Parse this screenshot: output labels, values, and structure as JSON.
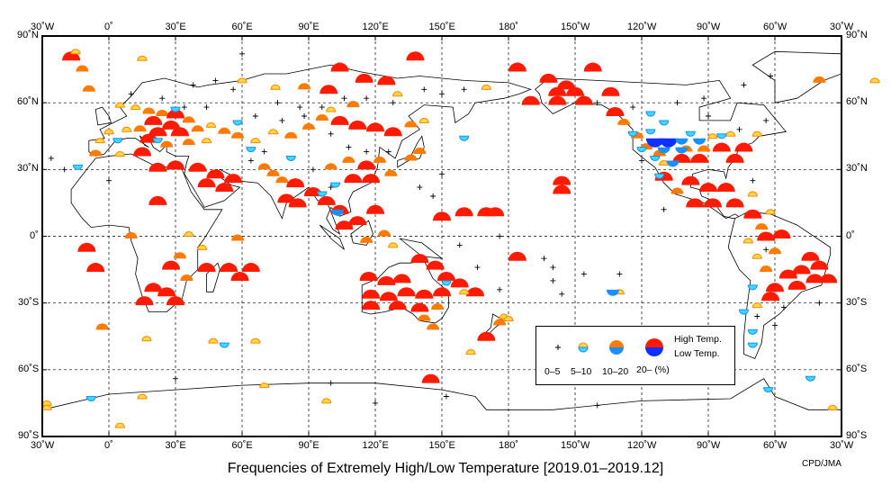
{
  "title": "Frequencies of Extremely High/Low Temperature [2019.01–2019.12]",
  "credit": "CPD/JMA",
  "axes": {
    "lon_labels": [
      "30˚W",
      "0˚",
      "30˚E",
      "60˚E",
      "90˚E",
      "120˚E",
      "150˚E",
      "180˚",
      "150˚W",
      "120˚W",
      "90˚W",
      "60˚W",
      "30˚W"
    ],
    "lat_labels": [
      "90˚N",
      "60˚N",
      "30˚N",
      "0˚",
      "30˚S",
      "60˚S",
      "90˚S"
    ]
  },
  "legend": {
    "high": "High Temp.",
    "low": "Low Temp.",
    "classes": [
      "0–5",
      "5–10",
      "10–20",
      "20– (%)"
    ]
  },
  "colors": {
    "high": [
      "#ffd84a",
      "#ff7a00",
      "#ff1a00"
    ],
    "high_edge": "#ff8a00",
    "low": [
      "#40d8ff",
      "#1a90ff",
      "#1030ff"
    ]
  },
  "markers": [
    [
      -17,
      79,
      3,
      "H"
    ],
    [
      -12,
      74,
      2,
      "H"
    ],
    [
      -9,
      65,
      2,
      "H"
    ],
    [
      -15,
      82,
      1,
      "H"
    ],
    [
      15,
      79,
      1,
      "H"
    ],
    [
      104,
      74,
      3,
      "H"
    ],
    [
      138,
      79,
      3,
      "H"
    ],
    [
      184,
      74,
      3,
      "H"
    ],
    [
      218,
      74,
      3,
      "H"
    ],
    [
      198,
      69,
      3,
      "H"
    ],
    [
      206,
      66,
      3,
      "H"
    ],
    [
      190,
      59,
      3,
      "H"
    ],
    [
      202,
      59,
      3,
      "H"
    ],
    [
      214,
      59,
      3,
      "H"
    ],
    [
      202,
      63,
      3,
      "H"
    ],
    [
      210,
      63,
      3,
      "H"
    ],
    [
      226,
      63,
      3,
      "H"
    ],
    [
      99,
      64,
      3,
      "H"
    ],
    [
      115,
      69,
      3,
      "H"
    ],
    [
      125,
      68,
      3,
      "H"
    ],
    [
      88,
      66,
      2,
      "H"
    ],
    [
      75,
      66,
      1,
      "H"
    ],
    [
      60,
      69,
      1,
      "H"
    ],
    [
      130,
      63,
      1,
      "H"
    ],
    [
      170,
      66,
      1,
      "H"
    ],
    [
      320,
      69,
      2,
      "H"
    ],
    [
      345,
      69,
      1,
      "H"
    ],
    [
      5,
      58,
      1,
      "H"
    ],
    [
      12,
      57,
      1,
      "H"
    ],
    [
      18,
      55,
      2,
      "H"
    ],
    [
      24,
      54,
      2,
      "H"
    ],
    [
      30,
      53,
      3,
      "H"
    ],
    [
      36,
      51,
      2,
      "H"
    ],
    [
      20,
      50,
      3,
      "H"
    ],
    [
      28,
      48,
      3,
      "H"
    ],
    [
      14,
      47,
      2,
      "H"
    ],
    [
      8,
      47,
      1,
      "H"
    ],
    [
      0,
      46,
      1,
      "H"
    ],
    [
      -4,
      42,
      1,
      "H"
    ],
    [
      22,
      45,
      3,
      "H"
    ],
    [
      32,
      45,
      3,
      "H"
    ],
    [
      40,
      47,
      2,
      "H"
    ],
    [
      46,
      49,
      1,
      "H"
    ],
    [
      52,
      46,
      2,
      "H"
    ],
    [
      18,
      42,
      3,
      "H"
    ],
    [
      26,
      40,
      2,
      "H"
    ],
    [
      36,
      41,
      2,
      "H"
    ],
    [
      44,
      42,
      1,
      "H"
    ],
    [
      58,
      44,
      2,
      "H"
    ],
    [
      66,
      42,
      1,
      "H"
    ],
    [
      74,
      46,
      1,
      "H"
    ],
    [
      82,
      44,
      2,
      "H"
    ],
    [
      90,
      48,
      2,
      "H"
    ],
    [
      96,
      52,
      2,
      "H"
    ],
    [
      104,
      50,
      3,
      "H"
    ],
    [
      112,
      48,
      3,
      "H"
    ],
    [
      120,
      47,
      3,
      "H"
    ],
    [
      128,
      45,
      3,
      "H"
    ],
    [
      136,
      49,
      2,
      "H"
    ],
    [
      142,
      51,
      1,
      "H"
    ],
    [
      100,
      56,
      1,
      "H"
    ],
    [
      110,
      58,
      2,
      "H"
    ],
    [
      -6,
      36,
      2,
      "H"
    ],
    [
      5,
      36,
      1,
      "H"
    ],
    [
      15,
      36,
      3,
      "H"
    ],
    [
      22,
      29,
      3,
      "H"
    ],
    [
      30,
      30,
      3,
      "H"
    ],
    [
      40,
      29,
      3,
      "H"
    ],
    [
      48,
      26,
      3,
      "H"
    ],
    [
      56,
      24,
      3,
      "H"
    ],
    [
      44,
      22,
      3,
      "H"
    ],
    [
      52,
      20,
      3,
      "H"
    ],
    [
      70,
      30,
      2,
      "H"
    ],
    [
      74,
      27,
      2,
      "H"
    ],
    [
      78,
      24,
      2,
      "H"
    ],
    [
      84,
      22,
      3,
      "H"
    ],
    [
      80,
      15,
      3,
      "H"
    ],
    [
      85,
      13,
      3,
      "H"
    ],
    [
      92,
      18,
      3,
      "H"
    ],
    [
      98,
      14,
      3,
      "H"
    ],
    [
      100,
      30,
      2,
      "H"
    ],
    [
      108,
      33,
      2,
      "H"
    ],
    [
      116,
      30,
      3,
      "H"
    ],
    [
      122,
      33,
      2,
      "H"
    ],
    [
      110,
      24,
      3,
      "H"
    ],
    [
      118,
      24,
      3,
      "H"
    ],
    [
      127,
      27,
      2,
      "H"
    ],
    [
      136,
      34,
      2,
      "H"
    ],
    [
      140,
      37,
      2,
      "H"
    ],
    [
      104,
      10,
      3,
      "H"
    ],
    [
      106,
      3,
      3,
      "H"
    ],
    [
      112,
      5,
      3,
      "H"
    ],
    [
      120,
      10,
      3,
      "H"
    ],
    [
      124,
      0,
      2,
      "H"
    ],
    [
      116,
      -3,
      2,
      "H"
    ],
    [
      128,
      -5,
      1,
      "H"
    ],
    [
      150,
      7,
      3,
      "H"
    ],
    [
      160,
      9,
      3,
      "H"
    ],
    [
      170,
      9,
      3,
      "H"
    ],
    [
      174,
      9,
      3,
      "H"
    ],
    [
      -10,
      -7,
      3,
      "H"
    ],
    [
      -6,
      -16,
      3,
      "H"
    ],
    [
      22,
      14,
      3,
      "H"
    ],
    [
      10,
      -1,
      2,
      "H"
    ],
    [
      36,
      0,
      1,
      "H"
    ],
    [
      42,
      -6,
      1,
      "H"
    ],
    [
      28,
      -15,
      3,
      "H"
    ],
    [
      44,
      -16,
      3,
      "H"
    ],
    [
      54,
      -16,
      3,
      "H"
    ],
    [
      64,
      -16,
      3,
      "H"
    ],
    [
      59,
      -20,
      3,
      "H"
    ],
    [
      20,
      -25,
      3,
      "H"
    ],
    [
      26,
      -27,
      3,
      "H"
    ],
    [
      16,
      -31,
      3,
      "H"
    ],
    [
      30,
      -31,
      3,
      "H"
    ],
    [
      35,
      -20,
      2,
      "H"
    ],
    [
      32,
      -10,
      2,
      "H"
    ],
    [
      58,
      -2,
      2,
      "H"
    ],
    [
      -3,
      -42,
      2,
      "H"
    ],
    [
      17,
      -47,
      1,
      "H"
    ],
    [
      47,
      -48,
      1,
      "H"
    ],
    [
      66,
      -48,
      1,
      "H"
    ],
    [
      117,
      -20,
      3,
      "H"
    ],
    [
      125,
      -22,
      3,
      "H"
    ],
    [
      132,
      -21,
      3,
      "H"
    ],
    [
      140,
      -12,
      3,
      "H"
    ],
    [
      147,
      -15,
      3,
      "H"
    ],
    [
      152,
      -20,
      3,
      "H"
    ],
    [
      158,
      -23,
      3,
      "H"
    ],
    [
      118,
      -28,
      3,
      "H"
    ],
    [
      126,
      -29,
      3,
      "H"
    ],
    [
      134,
      -27,
      3,
      "H"
    ],
    [
      142,
      -28,
      3,
      "H"
    ],
    [
      150,
      -27,
      3,
      "H"
    ],
    [
      118,
      -33,
      3,
      "H"
    ],
    [
      130,
      -33,
      3,
      "H"
    ],
    [
      140,
      -34,
      3,
      "H"
    ],
    [
      148,
      -33,
      2,
      "H"
    ],
    [
      142,
      -38,
      2,
      "H"
    ],
    [
      146,
      -42,
      2,
      "H"
    ],
    [
      170,
      -47,
      3,
      "H"
    ],
    [
      176,
      -40,
      2,
      "H"
    ],
    [
      178,
      -37,
      1,
      "H"
    ],
    [
      165,
      -27,
      3,
      "H"
    ],
    [
      184,
      -11,
      3,
      "H"
    ],
    [
      160,
      -26,
      1,
      "H"
    ],
    [
      163,
      -53,
      1,
      "H"
    ],
    [
      204,
      23,
      3,
      "H"
    ],
    [
      204,
      19,
      3,
      "H"
    ],
    [
      145,
      -66,
      3,
      "H"
    ],
    [
      98,
      -75,
      1,
      "H"
    ],
    [
      70,
      -68,
      1,
      "H"
    ],
    [
      15,
      -73,
      1,
      "H"
    ],
    [
      -28,
      -78,
      1,
      "H"
    ],
    [
      -28,
      -76,
      1,
      "H"
    ],
    [
      5,
      -86,
      1,
      "H"
    ],
    [
      326,
      -78,
      1,
      "H"
    ],
    [
      228,
      54,
      3,
      "H"
    ],
    [
      232,
      50,
      2,
      "H"
    ],
    [
      238,
      44,
      2,
      "H"
    ],
    [
      242,
      39,
      2,
      "H"
    ],
    [
      248,
      36,
      2,
      "H"
    ],
    [
      250,
      32,
      1,
      "H"
    ],
    [
      260,
      38,
      2,
      "H"
    ],
    [
      268,
      38,
      2,
      "H"
    ],
    [
      276,
      38,
      3,
      "H"
    ],
    [
      286,
      38,
      3,
      "H"
    ],
    [
      282,
      33,
      3,
      "H"
    ],
    [
      272,
      44,
      1,
      "H"
    ],
    [
      280,
      45,
      1,
      "H"
    ],
    [
      292,
      45,
      1,
      "H"
    ],
    [
      266,
      33,
      3,
      "H"
    ],
    [
      258,
      33,
      3,
      "H"
    ],
    [
      250,
      25,
      3,
      "H"
    ],
    [
      262,
      23,
      3,
      "H"
    ],
    [
      270,
      20,
      3,
      "H"
    ],
    [
      278,
      20,
      3,
      "H"
    ],
    [
      256,
      19,
      2,
      "H"
    ],
    [
      264,
      13,
      3,
      "H"
    ],
    [
      272,
      13,
      3,
      "H"
    ],
    [
      282,
      13,
      3,
      "H"
    ],
    [
      290,
      8,
      3,
      "H"
    ],
    [
      294,
      3,
      2,
      "H"
    ],
    [
      296,
      -2,
      3,
      "H"
    ],
    [
      303,
      -1,
      3,
      "H"
    ],
    [
      288,
      -3,
      1,
      "H"
    ],
    [
      292,
      -10,
      1,
      "H"
    ],
    [
      316,
      -11,
      3,
      "H"
    ],
    [
      320,
      -15,
      3,
      "H"
    ],
    [
      312,
      -17,
      3,
      "H"
    ],
    [
      306,
      -19,
      3,
      "H"
    ],
    [
      318,
      -21,
      3,
      "H"
    ],
    [
      324,
      -21,
      3,
      "H"
    ],
    [
      300,
      -25,
      3,
      "H"
    ],
    [
      310,
      -24,
      3,
      "H"
    ],
    [
      298,
      -29,
      3,
      "H"
    ],
    [
      292,
      -32,
      1,
      "H"
    ],
    [
      296,
      -16,
      2,
      "H"
    ],
    [
      300,
      -8,
      2,
      "H"
    ],
    [
      290,
      18,
      1,
      "H"
    ],
    [
      298,
      10,
      1,
      "H"
    ],
    [
      230,
      -26,
      1,
      "H"
    ],
    [
      180,
      -38,
      1,
      "H"
    ],
    [
      244,
      48,
      1,
      "L"
    ],
    [
      236,
      47,
      1,
      "L"
    ],
    [
      246,
      44,
      3,
      "L"
    ],
    [
      252,
      44,
      3,
      "L"
    ],
    [
      258,
      44,
      2,
      "L"
    ],
    [
      266,
      44,
      2,
      "L"
    ],
    [
      250,
      40,
      2,
      "L"
    ],
    [
      258,
      40,
      2,
      "L"
    ],
    [
      246,
      36,
      1,
      "L"
    ],
    [
      254,
      34,
      2,
      "L"
    ],
    [
      262,
      47,
      1,
      "L"
    ],
    [
      276,
      46,
      1,
      "L"
    ],
    [
      250,
      52,
      1,
      "L"
    ],
    [
      244,
      56,
      1,
      "L"
    ],
    [
      240,
      40,
      1,
      "L"
    ],
    [
      248,
      28,
      1,
      "L"
    ],
    [
      227,
      -24,
      2,
      "L"
    ],
    [
      103,
      12,
      2,
      "L"
    ],
    [
      96,
      20,
      1,
      "L"
    ],
    [
      102,
      24,
      1,
      "L"
    ],
    [
      82,
      36,
      1,
      "L"
    ],
    [
      64,
      40,
      1,
      "L"
    ],
    [
      58,
      52,
      1,
      "L"
    ],
    [
      30,
      58,
      1,
      "L"
    ],
    [
      22,
      44,
      1,
      "L"
    ],
    [
      4,
      44,
      1,
      "L"
    ],
    [
      -14,
      32,
      1,
      "L"
    ],
    [
      52,
      -48,
      1,
      "L"
    ],
    [
      -8,
      -72,
      1,
      "L"
    ],
    [
      286,
      -33,
      1,
      "L"
    ],
    [
      290,
      -42,
      1,
      "L"
    ],
    [
      290,
      -48,
      1,
      "L"
    ],
    [
      297,
      -68,
      1,
      "L"
    ],
    [
      316,
      -63,
      1,
      "L"
    ],
    [
      290,
      -22,
      1,
      "L"
    ],
    [
      152,
      -20,
      1,
      "L"
    ],
    [
      160,
      45,
      1,
      "L"
    ]
  ],
  "plus": [
    [
      -26,
      35
    ],
    [
      -20,
      30
    ],
    [
      0,
      25
    ],
    [
      60,
      82
    ],
    [
      38,
      68
    ],
    [
      48,
      70
    ],
    [
      56,
      66
    ],
    [
      76,
      60
    ],
    [
      86,
      58
    ],
    [
      96,
      58
    ],
    [
      106,
      62
    ],
    [
      116,
      62
    ],
    [
      128,
      60
    ],
    [
      142,
      66
    ],
    [
      150,
      64
    ],
    [
      160,
      66
    ],
    [
      10,
      64
    ],
    [
      24,
      62
    ],
    [
      34,
      58
    ],
    [
      44,
      58
    ],
    [
      66,
      54
    ],
    [
      78,
      52
    ],
    [
      88,
      54
    ],
    [
      100,
      46
    ],
    [
      70,
      38
    ],
    [
      64,
      34
    ],
    [
      108,
      40
    ],
    [
      116,
      38
    ],
    [
      126,
      38
    ],
    [
      92,
      30
    ],
    [
      100,
      22
    ],
    [
      140,
      22
    ],
    [
      146,
      18
    ],
    [
      150,
      28
    ],
    [
      196,
      -10
    ],
    [
      200,
      -14
    ],
    [
      200,
      -20
    ],
    [
      204,
      -26
    ],
    [
      176,
      -24
    ],
    [
      166,
      -14
    ],
    [
      176,
      0
    ],
    [
      158,
      -4
    ],
    [
      220,
      60
    ],
    [
      236,
      58
    ],
    [
      256,
      60
    ],
    [
      268,
      62
    ],
    [
      286,
      68
    ],
    [
      298,
      72
    ],
    [
      240,
      34
    ],
    [
      270,
      54
    ],
    [
      284,
      48
    ],
    [
      296,
      52
    ],
    [
      250,
      12
    ],
    [
      290,
      25
    ],
    [
      296,
      -6
    ],
    [
      292,
      -36
    ],
    [
      300,
      -40
    ],
    [
      320,
      -30
    ],
    [
      304,
      -32
    ],
    [
      120,
      -75
    ],
    [
      152,
      -72
    ],
    [
      220,
      -76
    ],
    [
      100,
      -66
    ],
    [
      30,
      -64
    ],
    [
      230,
      -17
    ],
    [
      214,
      -17
    ]
  ]
}
